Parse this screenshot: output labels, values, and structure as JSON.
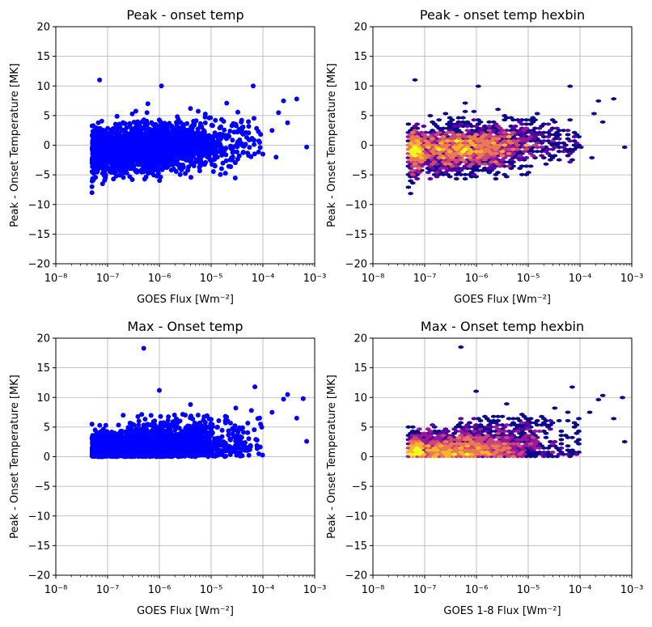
{
  "chart_data": [
    {
      "type": "scatter",
      "title": "Peak - onset temp",
      "xlabel": "GOES Flux [Wm⁻²]",
      "ylabel": "Peak - Onset Temperature [MK]",
      "xscale": "log",
      "xlim": [
        1e-08,
        0.001
      ],
      "ylim": [
        -20,
        20
      ],
      "yticks": [
        -20,
        -15,
        -10,
        -5,
        0,
        5,
        10,
        15,
        20
      ],
      "xtick_labels": [
        "10⁻⁸",
        "10⁻⁷",
        "10⁻⁶",
        "10⁻⁵",
        "10⁻⁴",
        "10⁻³"
      ],
      "grid": true,
      "color": "#0000ff",
      "cloud": {
        "x_range": [
          5e-08,
          0.0001
        ],
        "y_center": -0.5,
        "y_spread": 4.0,
        "trend_per_decade": 0.55,
        "count": 2600
      },
      "points": [
        [
          7e-08,
          11
        ],
        [
          1.1e-06,
          10
        ],
        [
          6.5e-05,
          10
        ],
        [
          5e-08,
          -8
        ],
        [
          5e-08,
          -7
        ],
        [
          8e-08,
          -6.5
        ],
        [
          6e-07,
          7
        ],
        [
          0.0007,
          -0.3
        ],
        [
          0.00045,
          7.8
        ],
        [
          0.00025,
          7.5
        ],
        [
          0.0003,
          3.8
        ],
        [
          0.0002,
          5.5
        ],
        [
          0.00018,
          -2
        ],
        [
          0.00015,
          2.5
        ],
        [
          0.0001,
          -1.5
        ],
        [
          1.3e-07,
          -5.7
        ],
        [
          2e-07,
          -4.5
        ],
        [
          6e-08,
          -0.3
        ],
        [
          3e-07,
          5.3
        ],
        [
          4e-06,
          6.2
        ],
        [
          2e-05,
          7.1
        ]
      ]
    },
    {
      "type": "heatmap",
      "title": "Peak - onset temp hexbin",
      "xlabel": "GOES Flux [Wm⁻²]",
      "ylabel": "Peak - Onset Temperature [MK]",
      "xscale": "log",
      "xlim": [
        1e-08,
        0.001
      ],
      "ylim": [
        -20,
        20
      ],
      "yticks": [
        -20,
        -15,
        -10,
        -5,
        0,
        5,
        10,
        15,
        20
      ],
      "xtick_labels": [
        "10⁻⁸",
        "10⁻⁷",
        "10⁻⁶",
        "10⁻⁵",
        "10⁻⁴",
        "10⁻³"
      ],
      "grid": true,
      "colormap": "plasma",
      "colors": [
        "#0d0887",
        "#5b02a3",
        "#9a179b",
        "#cb4678",
        "#eb7852",
        "#fbb32f",
        "#f0f921"
      ],
      "peak": {
        "x": 9e-07,
        "y": 0
      },
      "cloud": {
        "x_range": [
          5e-08,
          0.0001
        ],
        "y_center": -0.5,
        "y_spread": 4.0,
        "trend_per_decade": 0.55,
        "count": 2600
      },
      "points": [
        [
          7e-08,
          11
        ],
        [
          1.1e-06,
          10
        ],
        [
          6.5e-05,
          10
        ],
        [
          5e-08,
          -8
        ],
        [
          5e-08,
          -7
        ],
        [
          6e-07,
          7
        ],
        [
          0.0007,
          -0.3
        ],
        [
          0.00045,
          7.8
        ],
        [
          0.00025,
          7.5
        ],
        [
          0.0003,
          3.8
        ],
        [
          0.0002,
          5.5
        ],
        [
          0.00018,
          -2
        ],
        [
          1.3e-07,
          -5.7
        ],
        [
          2e-07,
          -4.5
        ]
      ]
    },
    {
      "type": "scatter",
      "title": "Max - Onset temp",
      "xlabel": "GOES Flux [Wm⁻²]",
      "ylabel": "Peak - Onset Temperature [MK]",
      "xscale": "log",
      "xlim": [
        1e-08,
        0.001
      ],
      "ylim": [
        -20,
        20
      ],
      "yticks": [
        -20,
        -15,
        -10,
        -5,
        0,
        5,
        10,
        15,
        20
      ],
      "xtick_labels": [
        "10⁻⁸",
        "10⁻⁷",
        "10⁻⁶",
        "10⁻⁵",
        "10⁻⁴",
        "10⁻³"
      ],
      "grid": true,
      "color": "#0000ff",
      "cloud": {
        "x_range": [
          5e-08,
          0.0001
        ],
        "y_floor": 0,
        "y_scale": 1.6,
        "trend_per_decade": 0.35,
        "count": 2600
      },
      "points": [
        [
          5e-07,
          18.3
        ],
        [
          1e-06,
          11.2
        ],
        [
          7e-05,
          11.8
        ],
        [
          0.0003,
          10.5
        ],
        [
          0.0006,
          9.8
        ],
        [
          0.00025,
          9.7
        ],
        [
          4e-06,
          8.8
        ],
        [
          3e-05,
          8.2
        ],
        [
          0.00015,
          7.5
        ],
        [
          0.00045,
          6.5
        ],
        [
          0.0007,
          2.6
        ],
        [
          5e-08,
          5.5
        ],
        [
          5e-08,
          3.2
        ],
        [
          2e-07,
          7
        ],
        [
          1e-05,
          6.3
        ],
        [
          6e-05,
          7.8
        ],
        [
          9e-05,
          5.5
        ]
      ]
    },
    {
      "type": "heatmap",
      "title": "Max - Onset temp hexbin",
      "xlabel": "GOES 1-8 Flux [Wm⁻²]",
      "ylabel": "Peak - Onset Temperature [MK]",
      "xscale": "log",
      "xlim": [
        1e-08,
        0.001
      ],
      "ylim": [
        -20,
        20
      ],
      "yticks": [
        -20,
        -15,
        -10,
        -5,
        0,
        5,
        10,
        15,
        20
      ],
      "xtick_labels": [
        "10⁻⁸",
        "10⁻⁷",
        "10⁻⁶",
        "10⁻⁵",
        "10⁻⁴",
        "10⁻³"
      ],
      "grid": true,
      "colormap": "plasma",
      "colors": [
        "#0d0887",
        "#5b02a3",
        "#9a179b",
        "#cb4678",
        "#eb7852",
        "#fbb32f",
        "#f0f921"
      ],
      "peak": {
        "x": 5e-07,
        "y": 1
      },
      "cloud": {
        "x_range": [
          5e-08,
          0.0001
        ],
        "y_floor": 0,
        "y_scale": 1.6,
        "trend_per_decade": 0.35,
        "count": 2600
      },
      "points": [
        [
          5e-07,
          18.6
        ],
        [
          1e-06,
          11.2
        ],
        [
          7e-05,
          11.8
        ],
        [
          0.0003,
          10.3
        ],
        [
          0.0006,
          9.9
        ],
        [
          0.00025,
          9.8
        ],
        [
          4e-06,
          8.9
        ],
        [
          3e-05,
          8.2
        ],
        [
          0.00015,
          7.5
        ],
        [
          0.00045,
          6.3
        ],
        [
          0.0007,
          2.5
        ],
        [
          5e-08,
          5
        ],
        [
          1e-05,
          6.4
        ],
        [
          6e-05,
          7.6
        ],
        [
          9e-05,
          5.4
        ]
      ]
    }
  ]
}
